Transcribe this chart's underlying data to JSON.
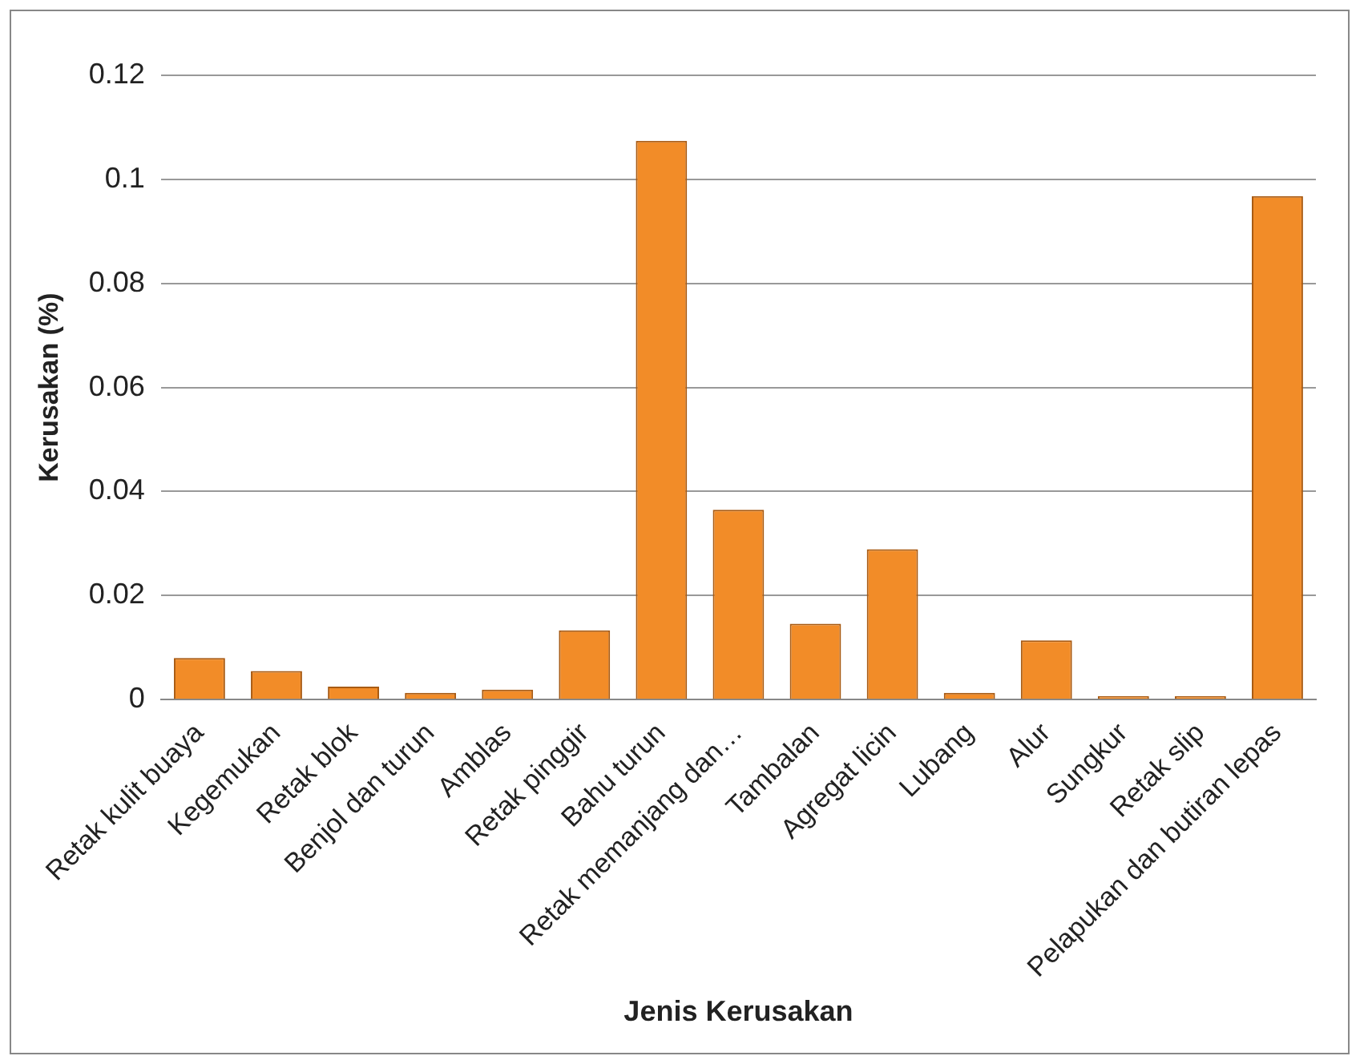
{
  "chart_data": {
    "type": "bar",
    "xlabel": "Jenis Kerusakan",
    "ylabel": "Kerusakan (%)",
    "categories": [
      "Retak kulit buaya",
      "Kegemukan",
      "Retak blok",
      "Benjol dan turun",
      "Amblas",
      "Retak pinggir",
      "Bahu turun",
      "Retak memanjang dan…",
      "Tambalan",
      "Agregat licin",
      "Lubang",
      "Alur",
      "Sungkur",
      "Retak slip",
      "Pelapukan dan butiran lepas"
    ],
    "values": [
      0.008,
      0.0055,
      0.0025,
      0.0013,
      0.0019,
      0.0133,
      0.1074,
      0.0365,
      0.0146,
      0.0289,
      0.0013,
      0.0114,
      0.0007,
      0.0007,
      0.0968
    ],
    "color": "#f28c28",
    "ylim": [
      0,
      0.12
    ],
    "yticks": [
      0,
      0.02,
      0.04,
      0.06,
      0.08,
      0.1,
      0.12
    ],
    "grid": "y",
    "legend": false
  }
}
